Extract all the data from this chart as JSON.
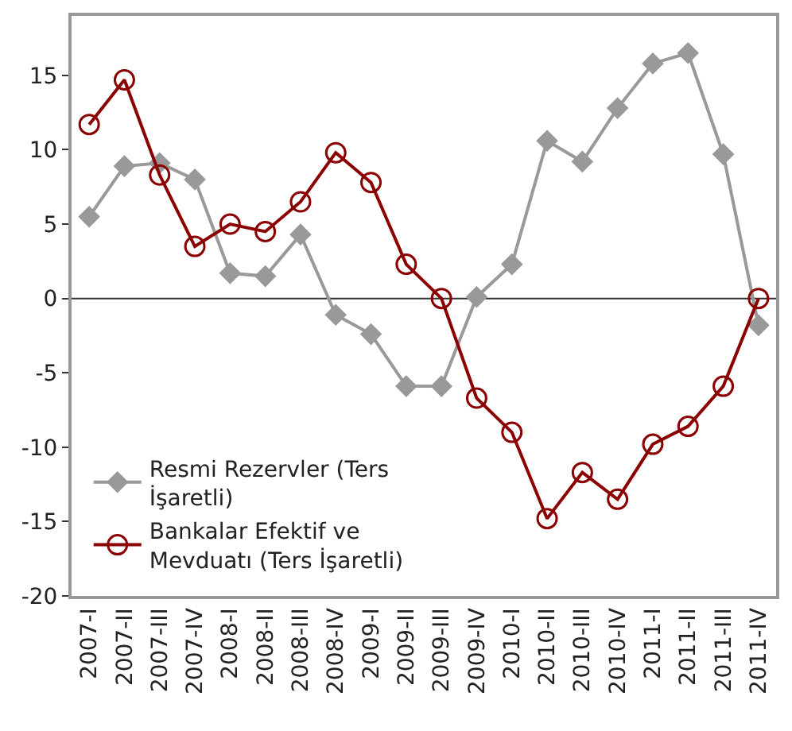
{
  "chart_data": {
    "type": "line",
    "categories": [
      "2007-I",
      "2007-II",
      "2007-III",
      "2007-IV",
      "2008-I",
      "2008-II",
      "2008-III",
      "2008-IV",
      "2009-I",
      "2009-II",
      "2009-III",
      "2009-IV",
      "2010-I",
      "2010-II",
      "2010-III",
      "2010-IV",
      "2011-I",
      "2011-II",
      "2011-III",
      "2011-IV"
    ],
    "series": [
      {
        "name": "Resmi Rezervler (Ters İşaretli)",
        "color": "#999999",
        "marker": "diamond",
        "values": [
          5.5,
          8.9,
          9.1,
          8.0,
          1.7,
          1.5,
          4.3,
          -1.1,
          -2.4,
          -5.9,
          -5.9,
          0.1,
          2.3,
          10.6,
          9.2,
          12.8,
          15.8,
          16.5,
          9.7,
          -1.8
        ]
      },
      {
        "name": "Bankalar Efektif ve Mevduatı (Ters İşaretli)",
        "color": "#8b0000",
        "marker": "circle-open",
        "values": [
          11.7,
          14.7,
          8.3,
          3.5,
          5.0,
          4.5,
          6.5,
          9.8,
          7.8,
          2.3,
          0.0,
          -6.7,
          -9.0,
          -14.8,
          -11.7,
          -13.5,
          -9.8,
          -8.6,
          -5.9,
          0.0
        ]
      }
    ],
    "ylim": [
      -20,
      19
    ],
    "yticks": [
      -20,
      -15,
      -10,
      -5,
      0,
      5,
      10,
      15
    ],
    "ref_lines": [
      {
        "axis": "y",
        "value": 0,
        "color": "#333333"
      }
    ],
    "legend": "bottom left",
    "line_style": "solid"
  }
}
